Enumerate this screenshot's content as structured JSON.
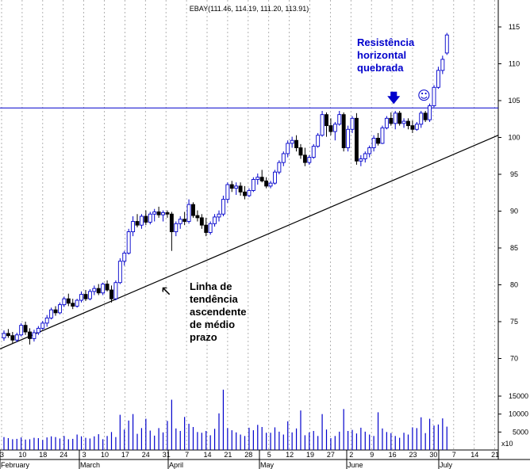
{
  "chart_data": {
    "type": "candlestick",
    "title": "EBAY(111.46, 114.19, 111.20, 113.91)",
    "price_ticks": [
      70,
      75,
      80,
      85,
      90,
      95,
      100,
      105,
      110,
      115
    ],
    "volume_ticks": [
      "5000",
      "10000",
      "15000"
    ],
    "volume_unit_label": "x10",
    "x_tick_labels": [
      "3",
      "10",
      "18",
      "24",
      "3",
      "10",
      "17",
      "24",
      "31",
      "7",
      "14",
      "21",
      "28",
      "5",
      "12",
      "19",
      "27",
      "2",
      "9",
      "16",
      "23",
      "30",
      "7",
      "14",
      "21"
    ],
    "month_labels": [
      "February",
      "March",
      "April",
      "May",
      "June",
      "July"
    ],
    "resistance_level": 104,
    "trendline": {
      "start_price": 71.3,
      "end_price": 100.3
    },
    "candles": [
      [
        72.8,
        73.8,
        72.4,
        73.4
      ],
      [
        73.4,
        74.0,
        72.8,
        73.1
      ],
      [
        73.1,
        73.6,
        72.0,
        72.5
      ],
      [
        72.5,
        73.5,
        72.2,
        73.2
      ],
      [
        73.2,
        74.8,
        73.0,
        74.5
      ],
      [
        74.5,
        75.0,
        73.2,
        73.6
      ],
      [
        73.6,
        74.1,
        71.9,
        72.7
      ],
      [
        72.7,
        73.9,
        72.3,
        73.5
      ],
      [
        73.5,
        74.4,
        73.2,
        74.1
      ],
      [
        74.1,
        75.1,
        73.9,
        74.8
      ],
      [
        74.8,
        75.9,
        74.3,
        75.5
      ],
      [
        75.5,
        76.9,
        75.3,
        76.6
      ],
      [
        76.6,
        77.1,
        75.8,
        76.2
      ],
      [
        76.2,
        77.6,
        76.0,
        77.3
      ],
      [
        77.3,
        78.4,
        77.0,
        78.1
      ],
      [
        78.1,
        78.8,
        77.1,
        77.5
      ],
      [
        77.5,
        78.1,
        76.7,
        77.1
      ],
      [
        77.1,
        78.1,
        76.9,
        77.9
      ],
      [
        77.9,
        79.1,
        77.6,
        78.7
      ],
      [
        78.7,
        79.3,
        77.8,
        78.1
      ],
      [
        78.1,
        79.4,
        77.9,
        79.1
      ],
      [
        79.1,
        79.9,
        78.6,
        79.5
      ],
      [
        79.5,
        80.1,
        78.6,
        78.9
      ],
      [
        78.9,
        80.3,
        78.6,
        80.1
      ],
      [
        80.1,
        80.6,
        79.1,
        79.3
      ],
      [
        79.3,
        79.9,
        77.6,
        78.1
      ],
      [
        78.1,
        80.6,
        77.9,
        80.3
      ],
      [
        80.3,
        83.6,
        80.1,
        83.2
      ],
      [
        83.2,
        84.6,
        82.6,
        84.3
      ],
      [
        84.3,
        87.6,
        84.1,
        87.2
      ],
      [
        87.2,
        89.3,
        86.6,
        88.6
      ],
      [
        88.6,
        89.6,
        87.8,
        88.1
      ],
      [
        88.1,
        89.6,
        87.6,
        89.3
      ],
      [
        89.3,
        90.1,
        88.1,
        88.5
      ],
      [
        88.5,
        89.9,
        88.2,
        89.6
      ],
      [
        89.6,
        90.3,
        88.6,
        89.9
      ],
      [
        89.9,
        90.6,
        89.1,
        89.5
      ],
      [
        89.5,
        90.1,
        88.6,
        89.8
      ],
      [
        89.8,
        90.1,
        89.1,
        89.6
      ],
      [
        89.6,
        89.9,
        84.6,
        87.2
      ],
      [
        87.2,
        88.6,
        86.6,
        88.3
      ],
      [
        88.3,
        89.3,
        87.6,
        88.9
      ],
      [
        88.9,
        89.9,
        88.1,
        88.6
      ],
      [
        88.6,
        91.6,
        88.3,
        90.9
      ],
      [
        90.9,
        91.2,
        89.1,
        89.4
      ],
      [
        89.4,
        90.1,
        88.6,
        89.1
      ],
      [
        89.1,
        89.6,
        87.6,
        88.1
      ],
      [
        88.1,
        89.1,
        86.6,
        87.1
      ],
      [
        87.1,
        88.6,
        86.8,
        88.3
      ],
      [
        88.3,
        89.6,
        87.9,
        89.2
      ],
      [
        89.2,
        90.1,
        88.6,
        89.6
      ],
      [
        89.6,
        92.1,
        89.3,
        91.6
      ],
      [
        91.6,
        93.9,
        91.1,
        93.6
      ],
      [
        93.6,
        94.1,
        92.6,
        93.1
      ],
      [
        93.1,
        93.9,
        92.2,
        93.4
      ],
      [
        93.4,
        93.9,
        92.1,
        92.6
      ],
      [
        92.6,
        93.4,
        91.6,
        92.1
      ],
      [
        92.1,
        93.1,
        91.9,
        92.8
      ],
      [
        92.8,
        94.6,
        92.6,
        94.3
      ],
      [
        94.3,
        95.1,
        93.6,
        94.6
      ],
      [
        94.6,
        95.6,
        93.9,
        94.1
      ],
      [
        94.1,
        94.6,
        93.1,
        93.4
      ],
      [
        93.4,
        94.1,
        93.1,
        93.8
      ],
      [
        93.8,
        95.6,
        93.6,
        95.3
      ],
      [
        95.3,
        96.9,
        95.0,
        96.6
      ],
      [
        96.6,
        98.1,
        96.1,
        97.8
      ],
      [
        97.8,
        99.6,
        97.3,
        99.2
      ],
      [
        99.2,
        100.1,
        98.6,
        99.6
      ],
      [
        99.6,
        100.3,
        98.1,
        98.6
      ],
      [
        98.6,
        99.1,
        97.1,
        97.6
      ],
      [
        97.6,
        98.6,
        96.1,
        96.6
      ],
      [
        96.6,
        97.6,
        96.3,
        97.3
      ],
      [
        97.3,
        99.1,
        97.1,
        98.8
      ],
      [
        98.8,
        100.6,
        98.6,
        100.3
      ],
      [
        100.3,
        103.6,
        100.1,
        103.1
      ],
      [
        103.1,
        103.4,
        100.1,
        101.6
      ],
      [
        101.6,
        102.6,
        100.3,
        100.8
      ],
      [
        100.8,
        102.1,
        99.6,
        101.8
      ],
      [
        101.8,
        103.6,
        101.6,
        103.1
      ],
      [
        103.1,
        103.4,
        98.1,
        98.6
      ],
      [
        98.6,
        101.6,
        98.1,
        101.1
      ],
      [
        101.1,
        102.9,
        100.6,
        102.6
      ],
      [
        102.6,
        103.3,
        96.3,
        96.8
      ],
      [
        96.8,
        97.6,
        96.1,
        97.1
      ],
      [
        97.1,
        98.1,
        96.6,
        97.8
      ],
      [
        97.8,
        98.9,
        97.3,
        98.6
      ],
      [
        98.6,
        100.3,
        98.1,
        99.9
      ],
      [
        99.9,
        100.6,
        98.9,
        99.2
      ],
      [
        99.2,
        101.6,
        99.1,
        101.3
      ],
      [
        101.3,
        102.9,
        101.1,
        102.6
      ],
      [
        102.6,
        103.4,
        101.6,
        101.9
      ],
      [
        101.9,
        103.6,
        101.1,
        103.3
      ],
      [
        103.3,
        103.6,
        101.6,
        101.9
      ],
      [
        101.9,
        102.6,
        101.3,
        102.2
      ],
      [
        102.2,
        102.6,
        101.1,
        101.6
      ],
      [
        101.6,
        102.3,
        100.6,
        101.1
      ],
      [
        101.1,
        102.1,
        100.9,
        101.8
      ],
      [
        101.8,
        103.6,
        101.3,
        103.3
      ],
      [
        103.3,
        103.6,
        102.1,
        102.4
      ],
      [
        102.4,
        104.6,
        102.1,
        104.3
      ],
      [
        104.3,
        107.1,
        104.1,
        106.8
      ],
      [
        106.8,
        109.6,
        106.6,
        109.1
      ],
      [
        109.1,
        111.1,
        108.6,
        110.6
      ],
      [
        111.46,
        114.19,
        111.2,
        113.91
      ]
    ],
    "candle_slots": [
      0,
      1,
      2,
      3,
      4,
      5,
      6,
      7,
      8,
      9,
      10,
      11,
      12,
      13,
      14,
      15,
      16,
      17,
      18,
      19,
      20,
      21,
      22,
      23,
      24,
      25,
      26,
      27,
      28,
      29,
      30,
      31,
      32,
      33,
      34,
      35,
      36,
      37,
      38,
      39,
      40,
      41,
      42,
      43,
      44,
      45,
      46,
      47,
      48,
      49,
      50,
      51,
      52,
      53,
      54,
      55,
      56,
      57,
      58,
      59,
      60,
      61,
      62,
      63,
      64,
      65,
      66,
      67,
      68,
      69,
      70,
      71,
      72,
      73,
      74,
      75,
      76,
      77,
      78,
      79,
      80,
      81,
      82,
      83,
      84,
      85,
      86,
      87,
      88,
      89,
      90,
      91,
      92,
      93,
      94,
      95,
      96,
      97,
      98,
      99,
      100,
      101,
      102,
      103
    ],
    "volumes": [
      3600,
      3300,
      3000,
      3100,
      3500,
      2900,
      3000,
      3400,
      3300,
      2800,
      3500,
      3800,
      3600,
      3200,
      3900,
      3000,
      3100,
      4300,
      3800,
      3400,
      3200,
      3800,
      4400,
      3000,
      3900,
      5000,
      3600,
      9800,
      5700,
      8200,
      10000,
      4500,
      6100,
      8700,
      5400,
      4000,
      6100,
      4900,
      8100,
      14000,
      6000,
      5300,
      9200,
      7300,
      6400,
      5000,
      4800,
      5300,
      4100,
      5900,
      10200,
      16800,
      6100,
      5500,
      4900,
      4300,
      3900,
      6200,
      5500,
      7000,
      6400,
      4800,
      4800,
      6300,
      5100,
      4300,
      8000,
      4900,
      6000,
      11000,
      4100,
      4900,
      5300,
      3900,
      10000,
      5700,
      3300,
      3900,
      5100,
      11400,
      5300,
      5600,
      4600,
      6200,
      5100,
      4300,
      3900,
      10500,
      6000,
      5000,
      4700,
      3900,
      3400,
      4800,
      4300,
      6300,
      6100,
      9100,
      4700,
      8700,
      6800,
      7100,
      8800,
      6500
    ],
    "annotations": {
      "resistance": "Resistência\nhorizontal\nquebrada",
      "trendline": "Linha de\ntendência\nascendente\nde médio\nprazo"
    },
    "colors": {
      "up_candle": "#0000cc",
      "down_candle": "#000000",
      "volume_bar": "#0000cc",
      "resistance_line": "#0000cc",
      "trendline": "#000000",
      "grid": "#a0a0a0"
    }
  }
}
